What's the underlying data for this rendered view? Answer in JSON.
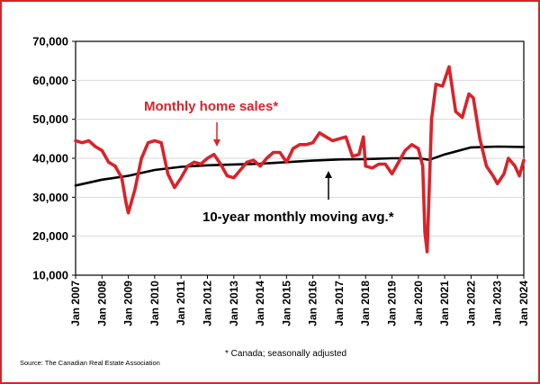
{
  "chart_data": {
    "type": "line",
    "title": "",
    "xlabel": "",
    "ylabel": "",
    "ylim": [
      10000,
      70000
    ],
    "yticks": [
      "10,000",
      "20,000",
      "30,000",
      "40,000",
      "50,000",
      "60,000",
      "70,000"
    ],
    "ytick_values": [
      10000,
      20000,
      30000,
      40000,
      50000,
      60000,
      70000
    ],
    "xticks": [
      "Jan 2007",
      "Jan 2008",
      "Jan 2009",
      "Jan 2010",
      "Jan 2011",
      "Jan 2012",
      "Jan 2013",
      "Jan 2014",
      "Jan 2015",
      "Jan 2016",
      "Jan 2017",
      "Jan 2018",
      "Jan 2019",
      "Jan 2020",
      "Jan 2021",
      "Jan 2022",
      "Jan 2023",
      "Jan 2024"
    ],
    "x_range": [
      "2007-01",
      "2024-01"
    ],
    "grid": "horizontal",
    "series": [
      {
        "name": "Monthly home sales*",
        "color": "#d8232a",
        "points": [
          [
            "2007-01",
            44500
          ],
          [
            "2007-04",
            44000
          ],
          [
            "2007-07",
            44500
          ],
          [
            "2007-10",
            43000
          ],
          [
            "2008-01",
            42000
          ],
          [
            "2008-04",
            39000
          ],
          [
            "2008-07",
            38000
          ],
          [
            "2008-10",
            35000
          ],
          [
            "2008-12",
            28500
          ],
          [
            "2009-01",
            26000
          ],
          [
            "2009-04",
            32000
          ],
          [
            "2009-07",
            40000
          ],
          [
            "2009-10",
            44000
          ],
          [
            "2010-01",
            44500
          ],
          [
            "2010-04",
            44000
          ],
          [
            "2010-07",
            36000
          ],
          [
            "2010-10",
            32500
          ],
          [
            "2011-01",
            35000
          ],
          [
            "2011-04",
            38000
          ],
          [
            "2011-07",
            39000
          ],
          [
            "2011-10",
            38500
          ],
          [
            "2012-01",
            40000
          ],
          [
            "2012-04",
            41000
          ],
          [
            "2012-07",
            38500
          ],
          [
            "2012-10",
            35500
          ],
          [
            "2013-01",
            35000
          ],
          [
            "2013-04",
            37000
          ],
          [
            "2013-07",
            39000
          ],
          [
            "2013-10",
            39500
          ],
          [
            "2014-01",
            38000
          ],
          [
            "2014-04",
            40000
          ],
          [
            "2014-07",
            41500
          ],
          [
            "2014-10",
            41500
          ],
          [
            "2015-01",
            39000
          ],
          [
            "2015-04",
            42500
          ],
          [
            "2015-07",
            43500
          ],
          [
            "2015-10",
            43500
          ],
          [
            "2016-01",
            44000
          ],
          [
            "2016-04",
            46500
          ],
          [
            "2016-07",
            45500
          ],
          [
            "2016-10",
            44500
          ],
          [
            "2017-01",
            45000
          ],
          [
            "2017-04",
            45500
          ],
          [
            "2017-07",
            40500
          ],
          [
            "2017-10",
            41000
          ],
          [
            "2017-12",
            45500
          ],
          [
            "2018-01",
            38000
          ],
          [
            "2018-04",
            37500
          ],
          [
            "2018-07",
            38500
          ],
          [
            "2018-10",
            38500
          ],
          [
            "2019-01",
            36000
          ],
          [
            "2019-04",
            39000
          ],
          [
            "2019-07",
            42000
          ],
          [
            "2019-10",
            43500
          ],
          [
            "2020-01",
            42500
          ],
          [
            "2020-03",
            38000
          ],
          [
            "2020-04",
            21000
          ],
          [
            "2020-05",
            16000
          ],
          [
            "2020-07",
            50000
          ],
          [
            "2020-09",
            59000
          ],
          [
            "2020-12",
            58500
          ],
          [
            "2021-03",
            63500
          ],
          [
            "2021-06",
            52000
          ],
          [
            "2021-09",
            50500
          ],
          [
            "2021-12",
            56500
          ],
          [
            "2022-02",
            55500
          ],
          [
            "2022-05",
            45000
          ],
          [
            "2022-08",
            38000
          ],
          [
            "2022-11",
            35500
          ],
          [
            "2023-01",
            33500
          ],
          [
            "2023-04",
            36000
          ],
          [
            "2023-06",
            40000
          ],
          [
            "2023-09",
            38000
          ],
          [
            "2023-11",
            35500
          ],
          [
            "2024-01",
            39500
          ]
        ]
      },
      {
        "name": "10-year monthly moving avg.*",
        "color": "#000000",
        "points": [
          [
            "2007-01",
            33000
          ],
          [
            "2008-01",
            34500
          ],
          [
            "2009-01",
            35500
          ],
          [
            "2010-01",
            37000
          ],
          [
            "2011-01",
            37800
          ],
          [
            "2012-01",
            38200
          ],
          [
            "2013-01",
            38400
          ],
          [
            "2014-01",
            38600
          ],
          [
            "2015-01",
            39000
          ],
          [
            "2016-01",
            39400
          ],
          [
            "2017-01",
            39700
          ],
          [
            "2018-01",
            39800
          ],
          [
            "2019-01",
            40000
          ],
          [
            "2020-01",
            40000
          ],
          [
            "2020-06",
            39600
          ],
          [
            "2021-01",
            41000
          ],
          [
            "2022-01",
            42800
          ],
          [
            "2023-01",
            43000
          ],
          [
            "2024-01",
            42900
          ]
        ]
      }
    ],
    "annotations": {
      "sales_label": "Monthly home sales*",
      "avg_label": "10-year monthly moving avg.*"
    }
  },
  "footnote": "* Canada; seasonally adjusted",
  "source": "Source: The Canadian Real Estate Association"
}
